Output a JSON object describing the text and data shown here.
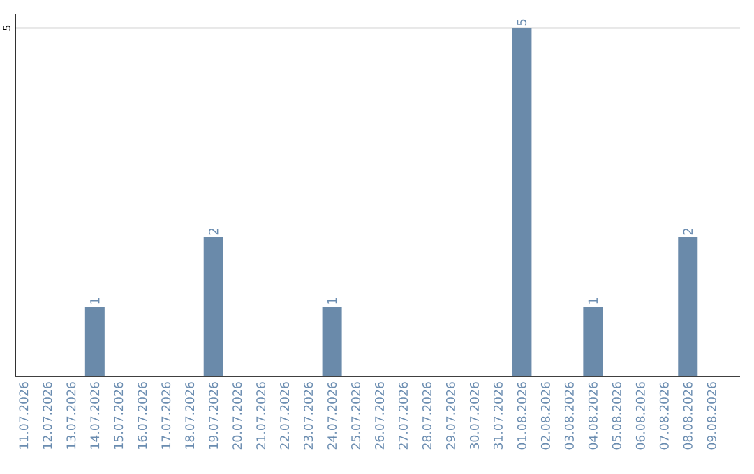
{
  "chart_data": {
    "type": "bar",
    "categories": [
      "11.07.2026",
      "12.07.2026",
      "13.07.2026",
      "14.07.2026",
      "15.07.2026",
      "16.07.2026",
      "17.07.2026",
      "18.07.2026",
      "19.07.2026",
      "20.07.2026",
      "21.07.2026",
      "22.07.2026",
      "23.07.2026",
      "24.07.2026",
      "25.07.2026",
      "26.07.2026",
      "27.07.2026",
      "28.07.2026",
      "29.07.2026",
      "30.07.2026",
      "31.07.2026",
      "01.08.2026",
      "02.08.2026",
      "03.08.2026",
      "04.08.2026",
      "05.08.2026",
      "06.08.2026",
      "07.08.2026",
      "08.08.2026",
      "09.08.2026"
    ],
    "values": [
      0,
      0,
      0,
      1,
      0,
      0,
      0,
      0,
      2,
      0,
      0,
      0,
      0,
      1,
      0,
      0,
      0,
      0,
      0,
      0,
      0,
      5,
      0,
      0,
      1,
      0,
      0,
      0,
      2,
      0
    ],
    "value_labels": [
      null,
      null,
      null,
      "1",
      null,
      null,
      null,
      null,
      "2",
      null,
      null,
      null,
      null,
      "1",
      null,
      null,
      null,
      null,
      null,
      null,
      null,
      "5",
      null,
      null,
      "1",
      null,
      null,
      null,
      "2",
      null
    ],
    "color": "#6a8aaa",
    "ylim": [
      0,
      5.2
    ],
    "yticks": [
      5
    ],
    "grid": "y"
  }
}
